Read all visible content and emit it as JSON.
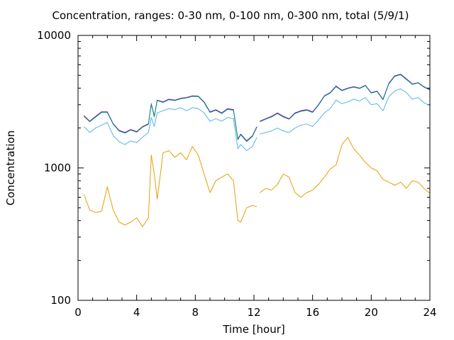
{
  "chart_data": {
    "type": "line",
    "title": "Concentration, ranges: 0-30 nm, 0-100 nm, 0-300 nm, total (5/9/1)",
    "xlabel": "Time [hour]",
    "ylabel": "Concentration",
    "xlim": [
      0,
      24
    ],
    "ylim": [
      100,
      10000
    ],
    "yscale": "log",
    "xticks": [
      0,
      4,
      8,
      12,
      16,
      20,
      24
    ],
    "xtick_labels": [
      "0",
      "4",
      "8",
      "12",
      "16",
      "20",
      "24"
    ],
    "yticks": [
      100,
      1000,
      10000
    ],
    "ytick_labels": [
      "100",
      "1000",
      "10000"
    ],
    "grid": false,
    "legend": "none",
    "x": [
      0.4,
      0.8,
      1.2,
      1.6,
      2.0,
      2.4,
      2.8,
      3.2,
      3.6,
      4.0,
      4.4,
      4.8,
      5.0,
      5.2,
      5.4,
      5.8,
      6.2,
      6.6,
      7.0,
      7.4,
      7.8,
      8.2,
      8.6,
      9.0,
      9.4,
      9.8,
      10.2,
      10.6,
      10.9,
      11.1,
      11.5,
      11.9,
      12.2,
      null,
      12.4,
      12.8,
      13.2,
      13.6,
      14.0,
      14.4,
      14.8,
      15.2,
      15.6,
      16.0,
      16.4,
      16.8,
      17.2,
      17.6,
      18.0,
      18.4,
      18.8,
      19.2,
      19.6,
      20.0,
      20.4,
      20.8,
      21.2,
      21.6,
      22.0,
      22.4,
      22.8,
      23.2,
      23.6,
      24.0
    ],
    "series": [
      {
        "color": "#9400d3",
        "values": [
          2480,
          2250,
          2450,
          2650,
          2650,
          2150,
          1920,
          1850,
          1950,
          1880,
          2050,
          2150,
          3050,
          2450,
          3250,
          3150,
          3300,
          3250,
          3350,
          3400,
          3500,
          3480,
          3150,
          2650,
          2750,
          2600,
          2800,
          2750,
          1650,
          1800,
          1600,
          1750,
          2050,
          null,
          2250,
          2350,
          2450,
          2600,
          2450,
          2350,
          2600,
          2700,
          2750,
          2650,
          3000,
          3500,
          3700,
          4150,
          3850,
          4000,
          4100,
          4000,
          4200,
          3700,
          3800,
          3300,
          4350,
          4950,
          5100,
          4700,
          4300,
          4400,
          4100,
          3900
        ]
      },
      {
        "color": "#009e73",
        "values": [
          2450,
          2230,
          2420,
          2620,
          2620,
          2130,
          1900,
          1830,
          1930,
          1860,
          2030,
          2130,
          3020,
          2420,
          3220,
          3120,
          3270,
          3220,
          3320,
          3370,
          3470,
          3450,
          3120,
          2620,
          2720,
          2570,
          2770,
          2720,
          1630,
          1780,
          1580,
          1730,
          2030,
          null,
          2230,
          2330,
          2420,
          2570,
          2420,
          2330,
          2570,
          2670,
          2720,
          2620,
          2970,
          3470,
          3670,
          4100,
          3820,
          3970,
          4070,
          3970,
          4170,
          3670,
          3770,
          3270,
          4300,
          4900,
          5050,
          4650,
          4270,
          4370,
          4070,
          3870
        ]
      },
      {
        "color": "#56b4e9",
        "values": [
          2050,
          1850,
          2000,
          2100,
          2200,
          1750,
          1580,
          1500,
          1600,
          1550,
          1700,
          1850,
          2400,
          2050,
          2600,
          2700,
          2800,
          2750,
          2850,
          2700,
          2850,
          2800,
          2600,
          2250,
          2350,
          2250,
          2400,
          2350,
          1400,
          1500,
          1350,
          1450,
          1700,
          null,
          1800,
          1850,
          1900,
          2000,
          1900,
          1850,
          2000,
          2100,
          2150,
          2050,
          2300,
          2600,
          2800,
          3250,
          3050,
          3150,
          3300,
          3200,
          3400,
          3000,
          3050,
          2700,
          3450,
          3800,
          3950,
          3700,
          3300,
          3400,
          3100,
          2950
        ]
      },
      {
        "color": "#e69f00",
        "values": [
          630,
          480,
          460,
          470,
          720,
          480,
          390,
          370,
          390,
          420,
          360,
          420,
          1250,
          900,
          580,
          1300,
          1350,
          1200,
          1300,
          1150,
          1450,
          1250,
          900,
          650,
          800,
          850,
          900,
          800,
          400,
          390,
          500,
          520,
          510,
          null,
          650,
          700,
          680,
          750,
          900,
          850,
          650,
          600,
          650,
          680,
          750,
          850,
          980,
          1050,
          1500,
          1700,
          1400,
          1250,
          1100,
          1000,
          950,
          820,
          780,
          740,
          780,
          700,
          800,
          780,
          700,
          640
        ]
      }
    ]
  }
}
